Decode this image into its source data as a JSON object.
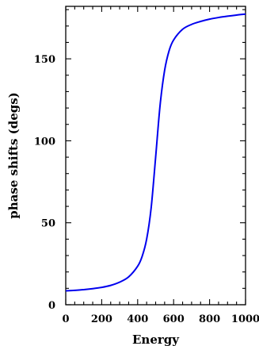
{
  "chart_data": {
    "type": "line",
    "title": "",
    "xlabel": "Energy",
    "ylabel": "phase shifts (degs)",
    "xlim": [
      0,
      1000
    ],
    "ylim": [
      0,
      182
    ],
    "x_ticks": [
      0,
      200,
      400,
      600,
      800,
      1000
    ],
    "x_tick_labels": [
      "0",
      "200",
      "400",
      "600",
      "800",
      "1000"
    ],
    "y_ticks": [
      0,
      50,
      100,
      150
    ],
    "y_tick_labels": [
      "0",
      "50",
      "100",
      "150"
    ],
    "grid": false,
    "legend": "none",
    "series": [
      {
        "color": "#0000ee",
        "x": [
          0,
          50,
          100,
          150,
          200,
          250,
          300,
          350,
          400,
          425,
          450,
          475,
          500,
          525,
          550,
          575,
          600,
          650,
          700,
          750,
          800,
          850,
          900,
          950,
          1000
        ],
        "y": [
          8.5,
          8.8,
          9.2,
          9.8,
          10.6,
          11.8,
          13.8,
          17,
          23.5,
          29.5,
          40,
          59,
          90,
          122,
          143,
          155,
          161.5,
          168,
          171,
          172.8,
          174.2,
          175.2,
          176,
          176.7,
          177.3
        ]
      }
    ]
  }
}
